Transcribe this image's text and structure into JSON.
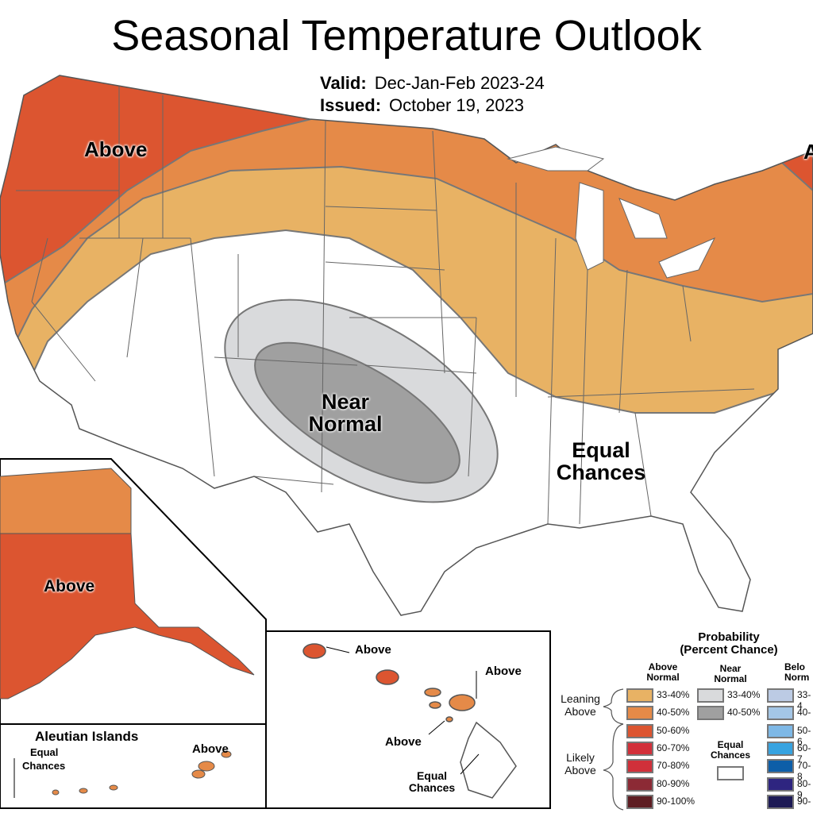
{
  "title": "Seasonal Temperature Outlook",
  "valid": {
    "label": "Valid:",
    "value": "Dec-Jan-Feb 2023-24"
  },
  "issued": {
    "label": "Issued:",
    "value": "October 19, 2023"
  },
  "map_labels": {
    "northwest": "Above",
    "northeast": "A",
    "near_normal_1": "Near",
    "near_normal_2": "Normal",
    "equal_1": "Equal",
    "equal_2": "Chances",
    "alaska": "Above",
    "aleutian_title": "Aleutian Islands",
    "aleutian_equal_1": "Equal",
    "aleutian_equal_2": "Chances",
    "aleutian_above": "Above",
    "hawaii_kauai": "Above",
    "hawaii_maui": "Above",
    "hawaii_oahu": "Above",
    "hawaii_equal_1": "Equal",
    "hawaii_equal_2": "Chances"
  },
  "legend": {
    "title_1": "Probability",
    "title_2": "(Percent Chance)",
    "above_header_1": "Above",
    "above_header_2": "Normal",
    "near_header_1": "Near",
    "near_header_2": "Normal",
    "below_header_1": "Belo",
    "below_header_2": "Norm",
    "leaning_1": "Leaning",
    "leaning_2": "Above",
    "likely_1": "Likely",
    "likely_2": "Above",
    "equal_1": "Equal",
    "equal_2": "Chances",
    "above": [
      {
        "label": "33-40%",
        "color": "#e8b264"
      },
      {
        "label": "40-50%",
        "color": "#e58a48"
      },
      {
        "label": "50-60%",
        "color": "#dc5530"
      },
      {
        "label": "60-70%",
        "color": "#d2303a"
      },
      {
        "label": "70-80%",
        "color": "#d0303a"
      },
      {
        "label": "80-90%",
        "color": "#8c2a35"
      },
      {
        "label": "90-100%",
        "color": "#5e1d22"
      }
    ],
    "near": [
      {
        "label": "33-40%",
        "color": "#d9dadc"
      },
      {
        "label": "40-50%",
        "color": "#a0a0a0"
      }
    ],
    "below": [
      {
        "label": "33-4",
        "color": "#bccbe4"
      },
      {
        "label": "40-",
        "color": "#a4c6e6"
      },
      {
        "label": "50-6",
        "color": "#7eb8e6"
      },
      {
        "label": "60-7",
        "color": "#37a3e0"
      },
      {
        "label": "70-8",
        "color": "#0d5ea8"
      },
      {
        "label": "80-9",
        "color": "#2e2580"
      },
      {
        "label": "90-",
        "color": "#1d1a55"
      }
    ]
  }
}
